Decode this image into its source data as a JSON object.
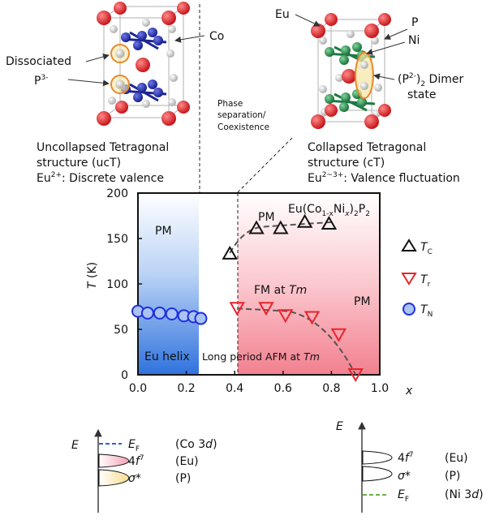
{
  "top": {
    "left_labels": {
      "co": "Co",
      "dissociated": "Dissociated",
      "p3": "P",
      "p3_sup": "3-"
    },
    "right_labels": {
      "eu": "Eu",
      "p": "P",
      "ni": "Ni",
      "dimer_a": "(P",
      "dimer_sup": "2-",
      "dimer_b": ")",
      "dimer_sub": "2",
      "dimer_c": " Dimer",
      "dimer_state": "state"
    },
    "phase_sep": [
      "Phase",
      "separation/",
      "Coexistence"
    ],
    "ucT": {
      "line1": "Uncollapsed Tetragonal",
      "line2": "structure (ucT)",
      "line3_a": "Eu",
      "line3_sup": "2+",
      "line3_b": ": Discrete valence"
    },
    "cT": {
      "line1": "Collapsed Tetragonal",
      "line2": "structure (cT)",
      "line3_a": "Eu",
      "line3_sup": "2~3+",
      "line3_b": ": Valence fluctuation"
    }
  },
  "chart": {
    "compound": {
      "a": "Eu(Co",
      "s1": "1-x",
      "b": "Ni",
      "s2": "x",
      "c": ")",
      "s3": "2",
      "d": "P",
      "s4": "2"
    },
    "ylabel_t": "T",
    "ylabel_k": " (K)",
    "xlabel": "x",
    "regions": {
      "pm_left": "PM",
      "pm_mid": "PM",
      "pm_right": "PM",
      "eu_helix": "Eu helix",
      "fm": "FM at ",
      "fm_it": "Tm",
      "afm": "Long period AFM at ",
      "afm_it": "Tm"
    },
    "legend": [
      {
        "sym": "T",
        "sub": "C"
      },
      {
        "sym": "T",
        "sub": "r"
      },
      {
        "sym": "T",
        "sub": "N"
      }
    ],
    "colors": {
      "tc": "#111111",
      "tr": "#e8242b",
      "tn": "#1f2fe0",
      "blue": "#3a7ae0",
      "red": "#f28a96"
    }
  },
  "chart_data": {
    "type": "scatter",
    "xlabel": "x",
    "ylabel": "T (K)",
    "xlim": [
      0.0,
      1.0
    ],
    "ylim": [
      0,
      200
    ],
    "xticks": [
      "0.0",
      "0.2",
      "0.4",
      "0.6",
      "0.8",
      "1.0"
    ],
    "yticks": [
      "0",
      "50",
      "100",
      "150",
      "200"
    ],
    "series": [
      {
        "name": "T_C",
        "x": [
          0.38,
          0.49,
          0.59,
          0.69,
          0.79
        ],
        "y": [
          134,
          162,
          162,
          169,
          167
        ]
      },
      {
        "name": "T_r",
        "x": [
          0.41,
          0.53,
          0.61,
          0.72,
          0.83,
          0.9
        ],
        "y": [
          73,
          73,
          65,
          63,
          44,
          0
        ]
      },
      {
        "name": "T_N",
        "x": [
          0.0,
          0.04,
          0.09,
          0.14,
          0.19,
          0.23,
          0.26
        ],
        "y": [
          70,
          68,
          68,
          67,
          65,
          64,
          62
        ]
      }
    ]
  },
  "bottom": {
    "left": {
      "e": "E",
      "ef": "E",
      "ef_sub": "F",
      "ef_label": "(Co 3",
      "ef_label_it": "d",
      "ef_label_end": ")",
      "f4": "4",
      "f4_it": "f",
      "f4_sup": "7",
      "f4_label": "(Eu)",
      "sigma": "σ*",
      "sigma_label": "(P)"
    },
    "right": {
      "e": "E",
      "f4": "4",
      "f4_it": "f",
      "f4_sup": "7",
      "f4_label": "(Eu)",
      "sigma": "σ*",
      "sigma_label": "(P)",
      "ef": "E",
      "ef_sub": "F",
      "ef_label": "(Ni 3",
      "ef_label_it": "d",
      "ef_label_end": ")"
    }
  }
}
